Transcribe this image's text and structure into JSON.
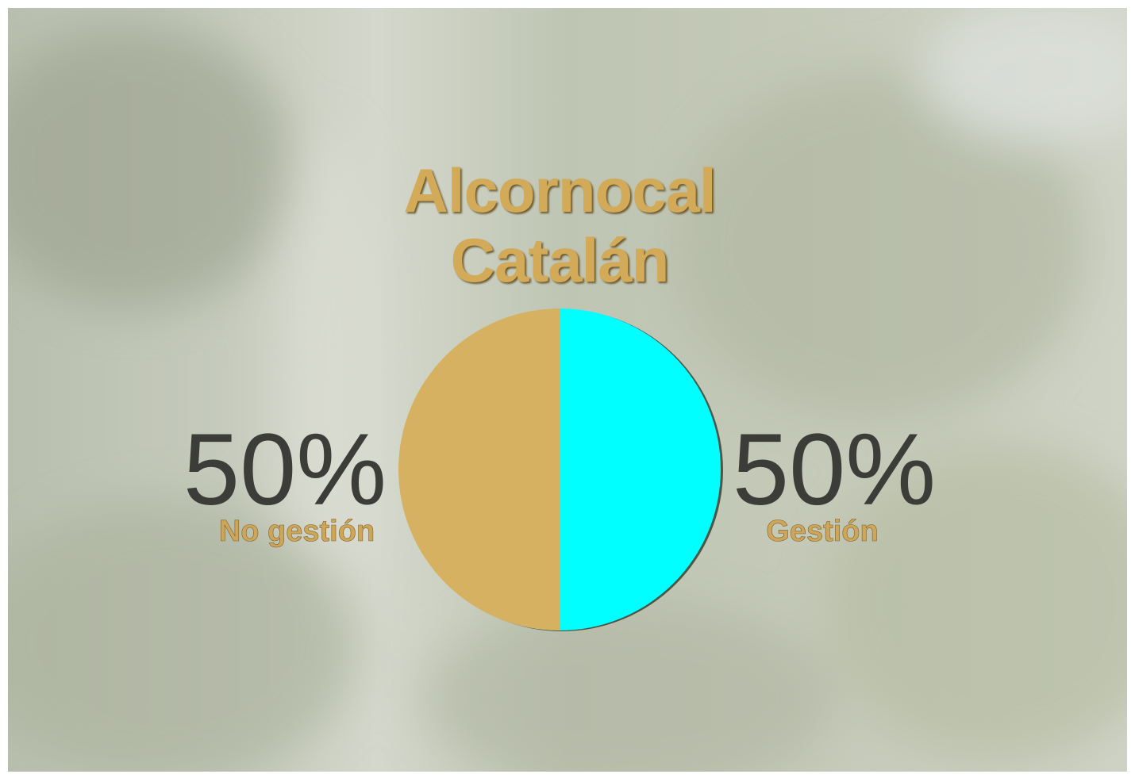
{
  "chart_data": {
    "type": "pie",
    "title": "Alcornocal Catalán",
    "categories": [
      "No gestión",
      "Gestión"
    ],
    "values": [
      50,
      50
    ],
    "value_labels": [
      "50%",
      "50%"
    ],
    "colors": [
      "#d7b162",
      "#00ffff"
    ]
  }
}
